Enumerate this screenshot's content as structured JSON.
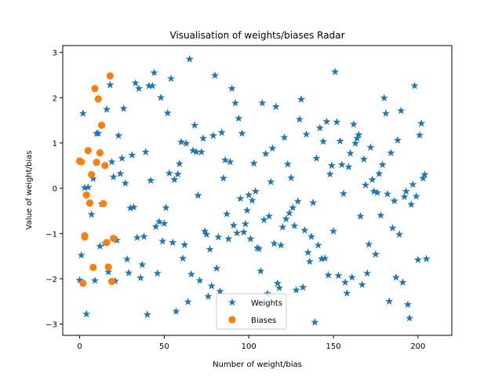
{
  "chart_data": {
    "type": "scatter",
    "title": "Visualisation of weights/biases Radar",
    "xlabel": "Number of weight/bias",
    "ylabel": "Value of weight/bias",
    "xlim": [
      -10,
      220
    ],
    "ylim": [
      -3.25,
      3.15
    ],
    "xticks": [
      0,
      50,
      100,
      150,
      200
    ],
    "yticks": [
      -3,
      -2,
      -1,
      0,
      1,
      2,
      3
    ],
    "grid": false,
    "legend_position": "lower center",
    "series": [
      {
        "name": "Weights",
        "marker": "star",
        "color": "#1f77b4",
        "points": [
          [
            0,
            -2.03
          ],
          [
            1,
            -1.48
          ],
          [
            2,
            1.65
          ],
          [
            3,
            0.01
          ],
          [
            4,
            -2.78
          ],
          [
            5,
            0.02
          ],
          [
            7,
            -0.58
          ],
          [
            8,
            0.21
          ],
          [
            9,
            -2.04
          ],
          [
            10,
            1.21
          ],
          [
            11,
            1.21
          ],
          [
            12,
            -1.28
          ],
          [
            13,
            -0.35
          ],
          [
            15,
            -1.22
          ],
          [
            16,
            1.74
          ],
          [
            17,
            -1.85
          ],
          [
            18,
            2.28
          ],
          [
            19,
            0.58
          ],
          [
            20,
            0.25
          ],
          [
            21,
            -2.05
          ],
          [
            22,
            -1.15
          ],
          [
            23,
            1.16
          ],
          [
            24,
            0.32
          ],
          [
            25,
            0.66
          ],
          [
            26,
            1.76
          ],
          [
            27,
            0.11
          ],
          [
            28,
            -1.57
          ],
          [
            29,
            -1.87
          ],
          [
            30,
            -0.44
          ],
          [
            31,
            0.73
          ],
          [
            32,
            -0.42
          ],
          [
            33,
            2.32
          ],
          [
            34,
            -1.09
          ],
          [
            35,
            2.2
          ],
          [
            36,
            -1.98
          ],
          [
            37,
            -1.69
          ],
          [
            38,
            -1.07
          ],
          [
            39,
            0.8
          ],
          [
            40,
            -2.79
          ],
          [
            41,
            2.26
          ],
          [
            42,
            0.17
          ],
          [
            43,
            2.26
          ],
          [
            44,
            2.55
          ],
          [
            45,
            -0.85
          ],
          [
            46,
            -1.88
          ],
          [
            47,
            -0.74
          ],
          [
            48,
            2.0
          ],
          [
            49,
            -1.17
          ],
          [
            50,
            -0.78
          ],
          [
            51,
            -0.43
          ],
          [
            52,
            1.66
          ],
          [
            53,
            0.33
          ],
          [
            54,
            2.42
          ],
          [
            55,
            -1.2
          ],
          [
            56,
            0.19
          ],
          [
            57,
            -2.72
          ],
          [
            58,
            0.31
          ],
          [
            59,
            0.54
          ],
          [
            60,
            1.02
          ],
          [
            61,
            -1.55
          ],
          [
            62,
            -1.25
          ],
          [
            63,
            0.99
          ],
          [
            64,
            -2.51
          ],
          [
            65,
            2.85
          ],
          [
            66,
            -1.9
          ],
          [
            67,
            0.83
          ],
          [
            68,
            1.39
          ],
          [
            69,
            0.8
          ],
          [
            70,
            -0.16
          ],
          [
            71,
            -2.04
          ],
          [
            72,
            0.8
          ],
          [
            73,
            1.1
          ],
          [
            74,
            -0.95
          ],
          [
            75,
            -1.02
          ],
          [
            76,
            -2.39
          ],
          [
            77,
            -1.35
          ],
          [
            78,
            -2.16
          ],
          [
            79,
            1.16
          ],
          [
            80,
            2.49
          ],
          [
            81,
            -1.77
          ],
          [
            82,
            -1.08
          ],
          [
            83,
            -2.28
          ],
          [
            84,
            1.23
          ],
          [
            85,
            0.22
          ],
          [
            86,
            0.62
          ],
          [
            87,
            -0.57
          ],
          [
            88,
            -1.12
          ],
          [
            89,
            0.58
          ],
          [
            90,
            2.2
          ],
          [
            91,
            -0.82
          ],
          [
            92,
            1.88
          ],
          [
            93,
            -0.99
          ],
          [
            94,
            1.54
          ],
          [
            95,
            -0.23
          ],
          [
            96,
            1.21
          ],
          [
            97,
            -0.97
          ],
          [
            98,
            -0.79
          ],
          [
            99,
            -0.49
          ],
          [
            100,
            -0.15
          ],
          [
            101,
            -1.12
          ],
          [
            102,
            -0.27
          ],
          [
            103,
            0.55
          ],
          [
            104,
            -0.07
          ],
          [
            105,
            -1.32
          ],
          [
            106,
            -1.34
          ],
          [
            107,
            -1.83
          ],
          [
            108,
            1.88
          ],
          [
            109,
            -0.7
          ],
          [
            110,
            0.76
          ],
          [
            111,
            -2.33
          ],
          [
            112,
            -0.62
          ],
          [
            113,
            0.14
          ],
          [
            114,
            0.88
          ],
          [
            115,
            -1.22
          ],
          [
            116,
            1.8
          ],
          [
            117,
            -2.1
          ],
          [
            118,
            -2.2
          ],
          [
            119,
            -1.26
          ],
          [
            120,
            -0.86
          ],
          [
            121,
            1.12
          ],
          [
            122,
            -0.68
          ],
          [
            123,
            0.53
          ],
          [
            124,
            -0.55
          ],
          [
            125,
            0.23
          ],
          [
            126,
            -0.43
          ],
          [
            127,
            -0.83
          ],
          [
            128,
            -2.25
          ],
          [
            129,
            -0.29
          ],
          [
            130,
            1.52
          ],
          [
            131,
            1.96
          ],
          [
            132,
            -2.19
          ],
          [
            133,
            -0.93
          ],
          [
            134,
            1.19
          ],
          [
            135,
            -1.42
          ],
          [
            136,
            -1.62
          ],
          [
            137,
            -1.07
          ],
          [
            138,
            -0.32
          ],
          [
            139,
            -2.96
          ],
          [
            140,
            0.66
          ],
          [
            141,
            -1.26
          ],
          [
            142,
            1.33
          ],
          [
            143,
            -1.56
          ],
          [
            144,
            1.03
          ],
          [
            145,
            -1.55
          ],
          [
            146,
            1.47
          ],
          [
            147,
            -1.92
          ],
          [
            148,
            0.31
          ],
          [
            149,
            0.5
          ],
          [
            150,
            -0.95
          ],
          [
            151,
            2.57
          ],
          [
            152,
            1.46
          ],
          [
            153,
            -1.93
          ],
          [
            154,
            1.04
          ],
          [
            155,
            0.52
          ],
          [
            156,
            -0.12
          ],
          [
            157,
            -2.08
          ],
          [
            158,
            -2.32
          ],
          [
            159,
            0.47
          ],
          [
            160,
            0.77
          ],
          [
            161,
            -1.97
          ],
          [
            162,
            1.41
          ],
          [
            163,
            0.99
          ],
          [
            164,
            1.1
          ],
          [
            165,
            1.18
          ],
          [
            166,
            -0.62
          ],
          [
            167,
            -2.13
          ],
          [
            168,
            0.64
          ],
          [
            169,
            0.07
          ],
          [
            170,
            -1.88
          ],
          [
            171,
            -1.24
          ],
          [
            172,
            0.9
          ],
          [
            173,
            0.19
          ],
          [
            174,
            -0.07
          ],
          [
            175,
            -1.46
          ],
          [
            176,
            -0.1
          ],
          [
            177,
            0.32
          ],
          [
            178,
            -0.6
          ],
          [
            179,
            0.52
          ],
          [
            180,
            1.99
          ],
          [
            181,
            1.65
          ],
          [
            182,
            -0.13
          ],
          [
            183,
            -2.5
          ],
          [
            184,
            0.78
          ],
          [
            185,
            -0.88
          ],
          [
            186,
            -0.28
          ],
          [
            187,
            -1.97
          ],
          [
            188,
            1.06
          ],
          [
            189,
            -1.02
          ],
          [
            190,
            1.71
          ],
          [
            191,
            -2.08
          ],
          [
            192,
            -0.19
          ],
          [
            193,
            -0.07
          ],
          [
            194,
            -2.57
          ],
          [
            195,
            -2.87
          ],
          [
            196,
            -0.36
          ],
          [
            197,
            0.08
          ],
          [
            198,
            2.26
          ],
          [
            199,
            -0.18
          ],
          [
            200,
            -1.58
          ],
          [
            201,
            1.17
          ],
          [
            202,
            1.43
          ],
          [
            203,
            0.22
          ],
          [
            204,
            0.3
          ],
          [
            205,
            -1.56
          ]
        ]
      },
      {
        "name": "Biases",
        "marker": "circle",
        "color": "#ff7f0e",
        "points": [
          [
            0,
            0.6
          ],
          [
            1,
            0.58
          ],
          [
            2,
            -2.1
          ],
          [
            3,
            -1.05
          ],
          [
            3,
            -1.08
          ],
          [
            4,
            -0.15
          ],
          [
            5,
            0.83
          ],
          [
            6,
            -0.33
          ],
          [
            7,
            0.3
          ],
          [
            8,
            -1.75
          ],
          [
            9,
            2.2
          ],
          [
            10,
            0.57
          ],
          [
            11,
            1.97
          ],
          [
            12,
            0.78
          ],
          [
            13,
            1.39
          ],
          [
            14,
            -0.34
          ],
          [
            15,
            0.5
          ],
          [
            16,
            -1.2
          ],
          [
            17,
            -1.74
          ],
          [
            18,
            2.48
          ],
          [
            19,
            -2.06
          ],
          [
            20,
            -1.11
          ]
        ]
      }
    ]
  }
}
